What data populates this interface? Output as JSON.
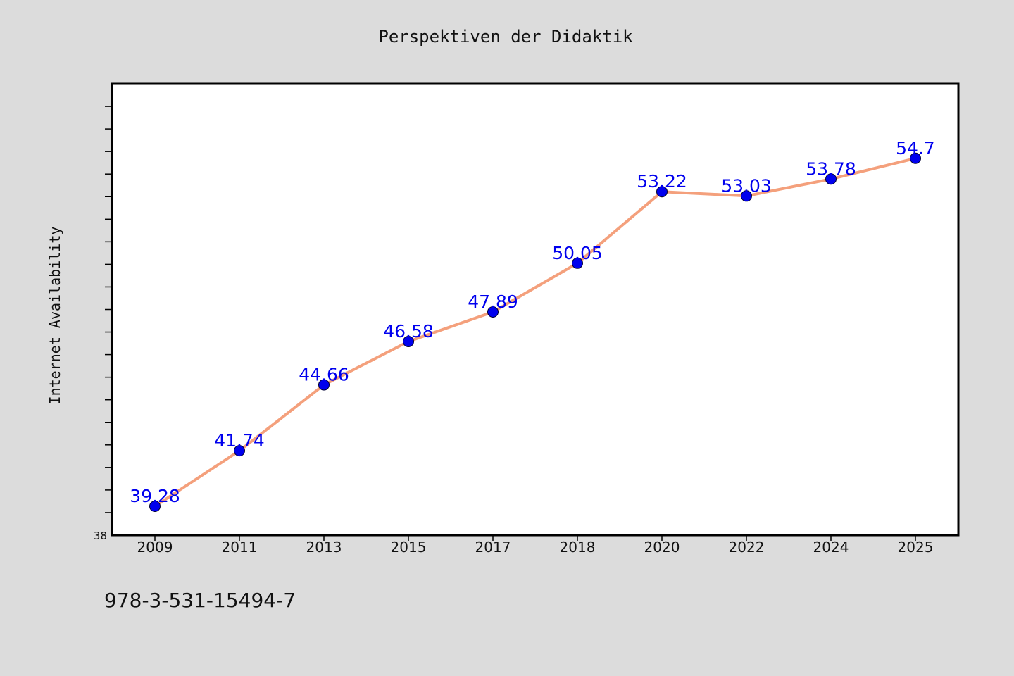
{
  "chart_data": {
    "type": "line",
    "title": "Perspektiven der Didaktik",
    "xlabel": "",
    "ylabel": "Internet Availability",
    "categories": [
      "2009",
      "2011",
      "2013",
      "2015",
      "2017",
      "2018",
      "2020",
      "2022",
      "2024",
      "2025"
    ],
    "series": [
      {
        "values": [
          39.28,
          41.74,
          44.66,
          46.58,
          47.89,
          50.05,
          53.22,
          53.03,
          53.78,
          54.7
        ],
        "labels": [
          "39.28",
          "41.74",
          "44.66",
          "46.58",
          "47.89",
          "50.05",
          "53.22",
          "53.03",
          "53.78",
          "54.7"
        ],
        "line_color": "#f4a07c",
        "marker_color": "#0000ee",
        "label_color": "#0000ee"
      }
    ],
    "ylim": [
      38,
      58
    ],
    "y_tick_labels": [
      "38"
    ],
    "minor_tick_step": 1,
    "grid": false,
    "legend": "none"
  },
  "footer": {
    "code": "978-3-531-15494-7"
  },
  "colors": {
    "background": "#dcdcdc",
    "plot_background": "#ffffff",
    "axis": "#000000"
  }
}
